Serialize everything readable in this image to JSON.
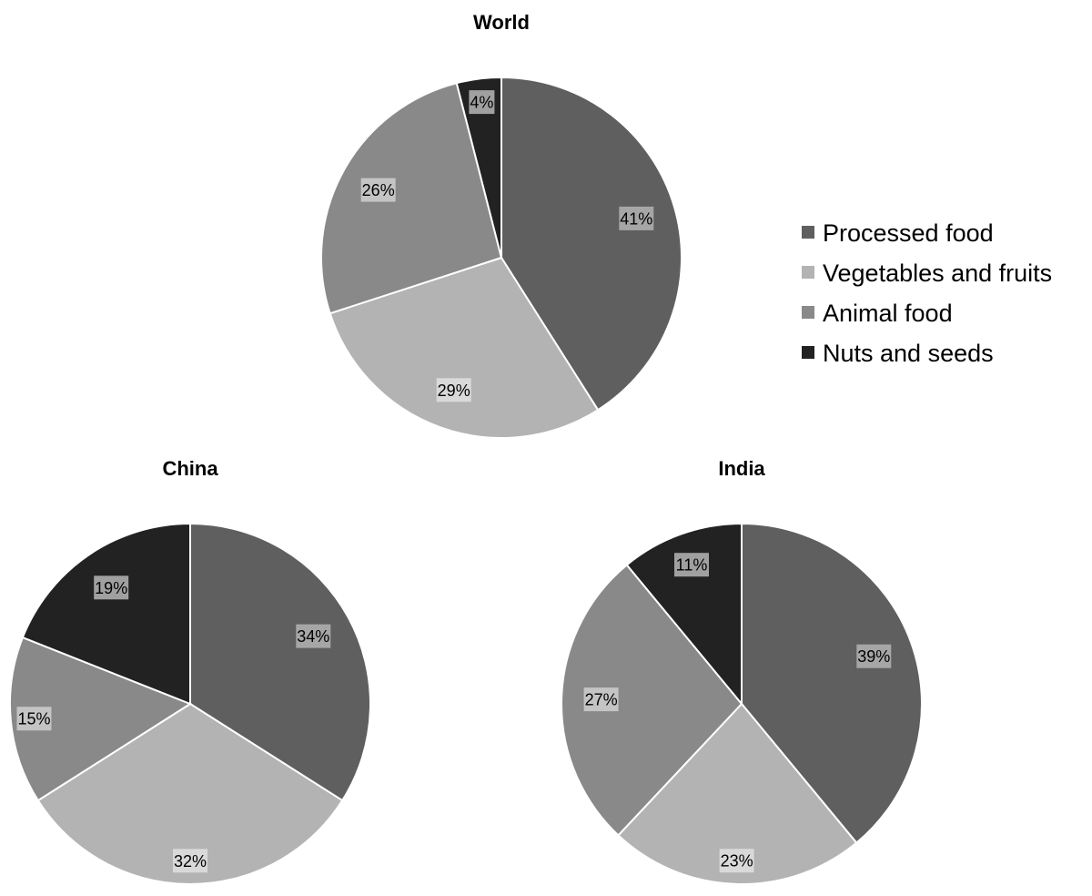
{
  "legend": [
    {
      "label": "Processed food",
      "color": "#5f5f5f",
      "label_box": "#a6a6a6"
    },
    {
      "label": "Vegetables and fruits",
      "color": "#b3b3b3",
      "label_box": "#d9d9d9"
    },
    {
      "label": "Animal food",
      "color": "#898989",
      "label_box": "#c4c4c4"
    },
    {
      "label": "Nuts and seeds",
      "color": "#222222",
      "label_box": "#a0a0a0"
    }
  ],
  "chart_data": [
    {
      "type": "pie",
      "title": "World",
      "labels": [
        "Processed food",
        "Vegetables and fruits",
        "Animal food",
        "Nuts and seeds"
      ],
      "values": [
        41,
        29,
        26,
        4
      ],
      "value_labels": [
        "41%",
        "29%",
        "26%",
        "4%"
      ],
      "legend_position": "right"
    },
    {
      "type": "pie",
      "title": "China",
      "labels": [
        "Processed food",
        "Vegetables and fruits",
        "Animal food",
        "Nuts and seeds"
      ],
      "values": [
        34,
        32,
        15,
        19
      ],
      "value_labels": [
        "34%",
        "32%",
        "15%",
        "19%"
      ]
    },
    {
      "type": "pie",
      "title": "India",
      "labels": [
        "Processed food",
        "Vegetables and fruits",
        "Animal food",
        "Nuts and seeds"
      ],
      "values": [
        39,
        23,
        27,
        11
      ],
      "value_labels": [
        "39%",
        "23%",
        "27%",
        "11%"
      ]
    }
  ]
}
